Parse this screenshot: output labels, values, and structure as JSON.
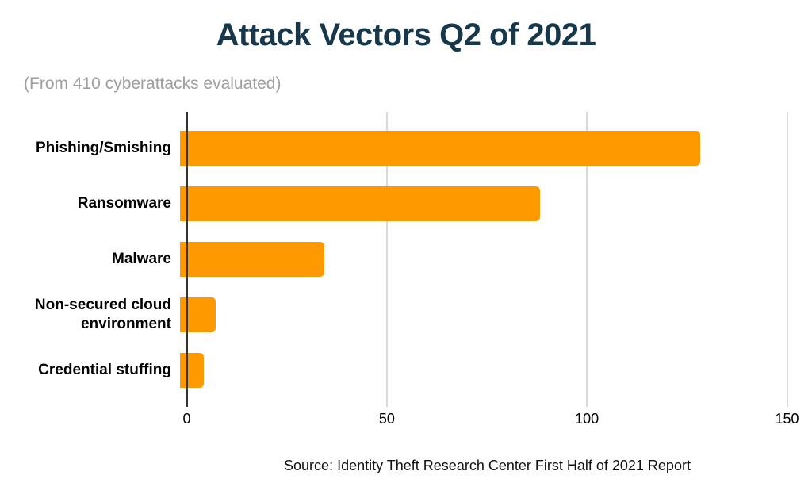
{
  "header": {
    "title": "Attack Vectors Q2 of 2021",
    "subtitle": "(From 410 cyberattacks evaluated)"
  },
  "footer": {
    "source": "Source: Identity Theft Research Center First Half of 2021 Report"
  },
  "chart_data": {
    "type": "bar",
    "orientation": "horizontal",
    "title": "Attack Vectors Q2 of 2021",
    "subtitle": "(From 410 cyberattacks evaluated)",
    "categories": [
      "Phishing/Smishing",
      "Ransomware",
      "Malware",
      "Non-secured cloud environment",
      "Credential stuffing"
    ],
    "values": [
      130,
      90,
      36,
      9,
      6
    ],
    "xlabel": "",
    "ylabel": "",
    "xlim": [
      0,
      150
    ],
    "xticks": [
      0,
      50,
      100,
      150
    ],
    "grid": true,
    "legend": false,
    "colors": {
      "bar": "#FF9900",
      "title": "#16384a",
      "subtitle": "#9e9e9e",
      "gridline": "#d9d9d9",
      "axis": "#333333",
      "label": "#000000"
    }
  }
}
